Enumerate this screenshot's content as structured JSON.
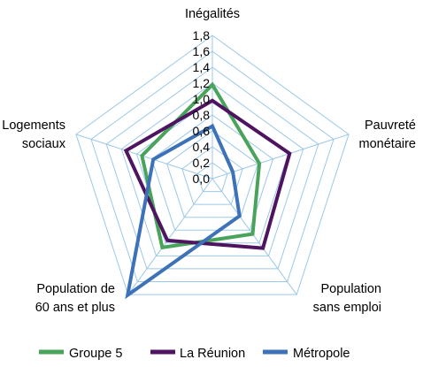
{
  "chart_data": {
    "type": "radar",
    "axes": [
      "Inégalités",
      "Pauvreté monétaire",
      "Population sans emploi",
      "Population de 60 ans et plus",
      "Logements sociaux"
    ],
    "axis_label_lines": [
      [
        "Inégalités"
      ],
      [
        "Pauvreté",
        "monétaire"
      ],
      [
        "Population",
        "sans emploi"
      ],
      [
        "Population de",
        "60 ans et plus"
      ],
      [
        "Logements",
        "sociaux"
      ]
    ],
    "ticks": [
      "0,0",
      "0,2",
      "0,4",
      "0,6",
      "0,8",
      "1,0",
      "1,2",
      "1,4",
      "1,6",
      "1,8"
    ],
    "rmax": 1.8,
    "series": [
      {
        "name": "Groupe 5",
        "color": "#4aa35a",
        "values": [
          1.18,
          0.62,
          0.86,
          1.07,
          0.93
        ]
      },
      {
        "name": "La Réunion",
        "color": "#4f1460",
        "values": [
          0.98,
          1.02,
          1.08,
          0.96,
          1.14
        ]
      },
      {
        "name": "Métropole",
        "color": "#3d72b8",
        "values": [
          0.66,
          0.27,
          0.58,
          1.81,
          0.78
        ]
      }
    ],
    "grid_color": "#9cc8e8",
    "legend_position": "bottom"
  }
}
